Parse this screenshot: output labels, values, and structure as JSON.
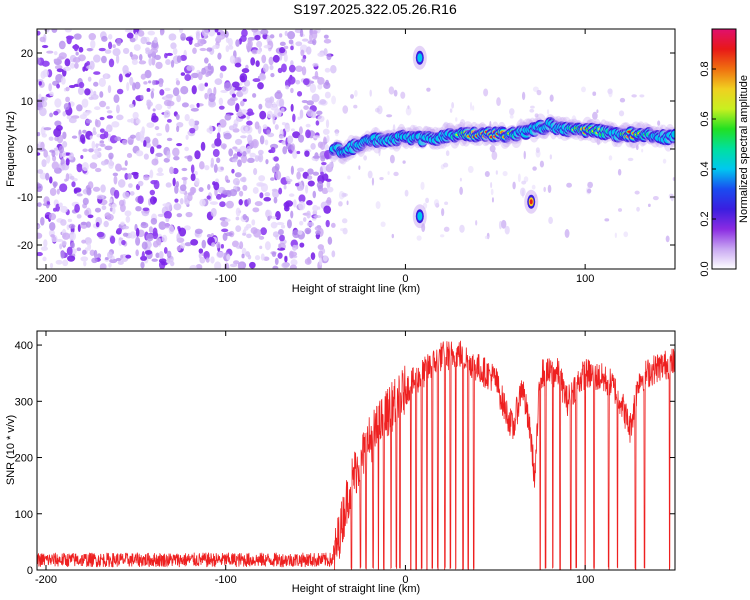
{
  "title": "S197.2025.322.05.26.R16",
  "colors": {
    "snr_line": "#ee2020",
    "background": "#ffffff",
    "noise_purple": "#7a22e8",
    "colormap": [
      "#ffffff",
      "#c9a8f2",
      "#8a2be2",
      "#3a1ee0",
      "#1a4cf0",
      "#00c8f0",
      "#00e0a0",
      "#22e022",
      "#c8f020",
      "#f0d020",
      "#f07010",
      "#e81818",
      "#e0106e"
    ]
  },
  "chart_data": [
    {
      "type": "heatmap",
      "name": "spectrogram",
      "xlabel": "Height of straight line (km)",
      "ylabel": "Frequency (Hz)",
      "xlim": [
        -205,
        150
      ],
      "ylim": [
        -25,
        25
      ],
      "x_ticks": [
        -200,
        -100,
        0,
        100
      ],
      "x_tick_labels": [
        "-200",
        "-100",
        "0",
        "100"
      ],
      "y_ticks": [
        -20,
        -10,
        0,
        10,
        20
      ],
      "y_tick_labels": [
        "-20",
        "-10",
        "0",
        "10",
        "20"
      ],
      "noise_region_x": [
        -205,
        -40
      ],
      "ridge": [
        {
          "x": -40,
          "y": 0.0,
          "amp": 0.15
        },
        {
          "x": -35,
          "y": -0.5,
          "amp": 0.25
        },
        {
          "x": -25,
          "y": 1.0,
          "amp": 0.25
        },
        {
          "x": -15,
          "y": 2.0,
          "amp": 0.3
        },
        {
          "x": -5,
          "y": 2.0,
          "amp": 0.3
        },
        {
          "x": 0,
          "y": 2.5,
          "amp": 0.3
        },
        {
          "x": 10,
          "y": 2.0,
          "amp": 0.35
        },
        {
          "x": 20,
          "y": 2.5,
          "amp": 0.4
        },
        {
          "x": 30,
          "y": 3.0,
          "amp": 0.65
        },
        {
          "x": 40,
          "y": 3.0,
          "amp": 0.9
        },
        {
          "x": 50,
          "y": 3.0,
          "amp": 0.95
        },
        {
          "x": 60,
          "y": 3.0,
          "amp": 0.7
        },
        {
          "x": 65,
          "y": 3.5,
          "amp": 0.4
        },
        {
          "x": 72,
          "y": 4.0,
          "amp": 0.35
        },
        {
          "x": 80,
          "y": 5.0,
          "amp": 0.4
        },
        {
          "x": 90,
          "y": 4.0,
          "amp": 0.5
        },
        {
          "x": 100,
          "y": 4.0,
          "amp": 0.85
        },
        {
          "x": 110,
          "y": 3.5,
          "amp": 0.6
        },
        {
          "x": 120,
          "y": 3.0,
          "amp": 0.55
        },
        {
          "x": 125,
          "y": 3.0,
          "amp": 0.9
        },
        {
          "x": 135,
          "y": 3.0,
          "amp": 0.6
        },
        {
          "x": 145,
          "y": 2.5,
          "amp": 0.5
        },
        {
          "x": 150,
          "y": 2.5,
          "amp": 0.45
        }
      ],
      "blobs": [
        {
          "x": 8,
          "y": 19,
          "amp": 0.4
        },
        {
          "x": 8,
          "y": -14,
          "amp": 0.45
        },
        {
          "x": 70,
          "y": -11,
          "amp": 0.75
        }
      ],
      "colorbar": {
        "label": "Normalized spectral amplitude",
        "range": [
          0,
          0.96
        ],
        "ticks": [
          0.0,
          0.2,
          0.4,
          0.6,
          0.8
        ],
        "tick_labels": [
          "0.0",
          "0.2",
          "0.4",
          "0.6",
          "0.8"
        ]
      }
    },
    {
      "type": "line",
      "name": "snr",
      "xlabel": "Height of straight line (km)",
      "ylabel": "SNR (10 * v/v)",
      "xlim": [
        -205,
        150
      ],
      "ylim": [
        0,
        425
      ],
      "x_ticks": [
        -200,
        -100,
        0,
        100
      ],
      "x_tick_labels": [
        "-200",
        "-100",
        "0",
        "100"
      ],
      "y_ticks": [
        0,
        100,
        200,
        300,
        400
      ],
      "y_tick_labels": [
        "0",
        "100",
        "200",
        "300",
        "400"
      ],
      "envelope": [
        {
          "x": -205,
          "y": 18
        },
        {
          "x": -40,
          "y": 18
        },
        {
          "x": -30,
          "y": 160
        },
        {
          "x": -20,
          "y": 230
        },
        {
          "x": -10,
          "y": 280
        },
        {
          "x": 0,
          "y": 320
        },
        {
          "x": 10,
          "y": 350
        },
        {
          "x": 20,
          "y": 380
        },
        {
          "x": 30,
          "y": 385
        },
        {
          "x": 40,
          "y": 360
        },
        {
          "x": 50,
          "y": 340
        },
        {
          "x": 55,
          "y": 290
        },
        {
          "x": 60,
          "y": 250
        },
        {
          "x": 65,
          "y": 330
        },
        {
          "x": 70,
          "y": 230
        },
        {
          "x": 72,
          "y": 160
        },
        {
          "x": 75,
          "y": 350
        },
        {
          "x": 85,
          "y": 350
        },
        {
          "x": 90,
          "y": 300
        },
        {
          "x": 95,
          "y": 330
        },
        {
          "x": 100,
          "y": 350
        },
        {
          "x": 110,
          "y": 340
        },
        {
          "x": 115,
          "y": 330
        },
        {
          "x": 120,
          "y": 300
        },
        {
          "x": 125,
          "y": 250
        },
        {
          "x": 130,
          "y": 340
        },
        {
          "x": 140,
          "y": 360
        },
        {
          "x": 150,
          "y": 370
        }
      ],
      "dropouts_x": [
        -30,
        -25,
        -22,
        -18,
        -15,
        -12,
        -8,
        -5,
        -3,
        3,
        6,
        9,
        12,
        15,
        18,
        22,
        25,
        28,
        32,
        35,
        38,
        75,
        78,
        82,
        86,
        92,
        95,
        100,
        105,
        113,
        118,
        128,
        133,
        147
      ]
    }
  ]
}
